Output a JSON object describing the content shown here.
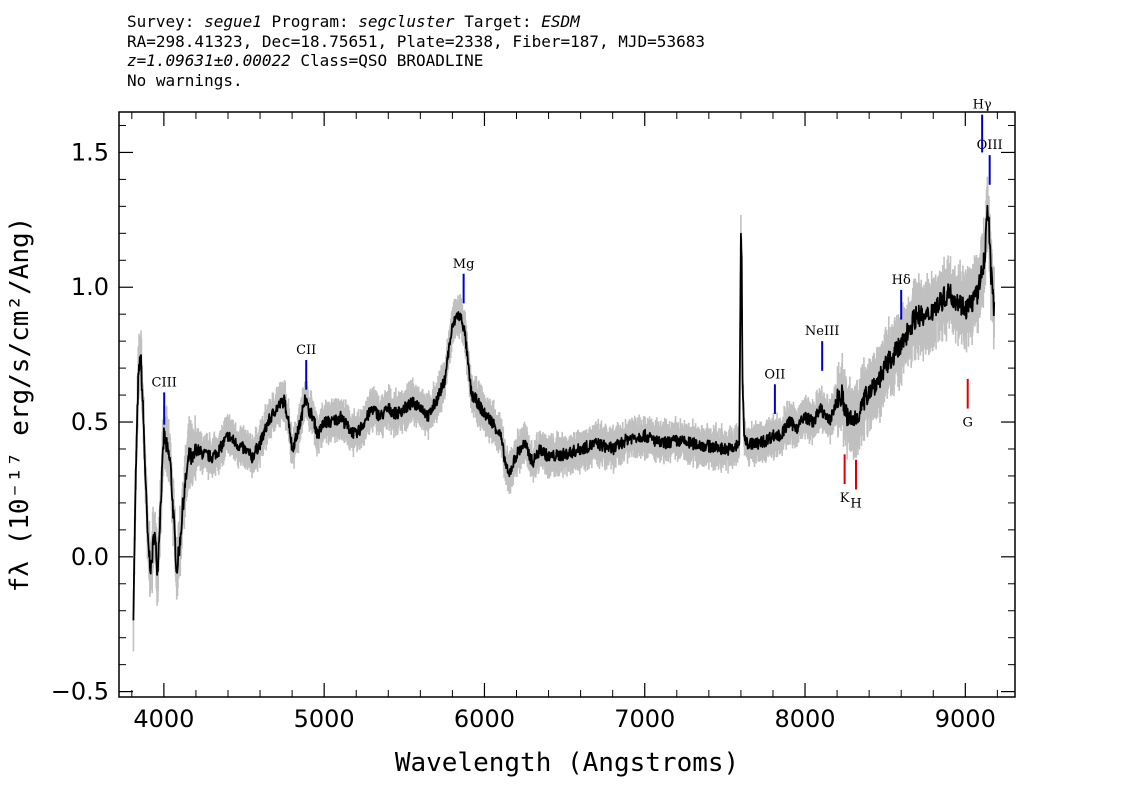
{
  "header": {
    "survey_label": "Survey:",
    "survey": "segue1",
    "program_label": "Program:",
    "program": "segcluster",
    "target_label": "Target:",
    "target": "ESDM",
    "line2": "RA=298.41323, Dec=18.75651, Plate=2338, Fiber=187, MJD=53683",
    "redshift": "z=1.09631±0.00022",
    "class": "Class=QSO BROADLINE",
    "warnings": "No warnings."
  },
  "colors": {
    "flux": "#000000",
    "error_band": "#c0c0c0",
    "emission_marker": "#0000cc",
    "absorption_marker": "#dd0000"
  },
  "chart_data": {
    "type": "line",
    "xlabel": "Wavelength (Angstroms)",
    "ylabel": "fλ (10⁻¹⁷ erg/s/cm²/Ang)",
    "xlim": [
      3720,
      9310
    ],
    "ylim": [
      -0.52,
      1.65
    ],
    "x_ticks": [
      4000,
      5000,
      6000,
      7000,
      8000,
      9000
    ],
    "y_ticks": [
      -0.5,
      0.0,
      0.5,
      1.0,
      1.5
    ],
    "y_tick_labels": [
      "−0.5",
      "0.0",
      "0.5",
      "1.0",
      "1.5"
    ],
    "series": [
      {
        "values_x": [
          3810,
          3825,
          3840,
          3855,
          3870,
          3885,
          3900,
          3920,
          3940,
          3960,
          3980,
          4000,
          4020,
          4040,
          4060,
          4080,
          4100,
          4120,
          4140,
          4160,
          4180,
          4200,
          4250,
          4300,
          4350,
          4400,
          4450,
          4500,
          4550,
          4600,
          4650,
          4700,
          4750,
          4780,
          4800,
          4830,
          4860,
          4880,
          4900,
          4930,
          4960,
          5000,
          5050,
          5100,
          5150,
          5200,
          5250,
          5300,
          5350,
          5400,
          5450,
          5500,
          5550,
          5600,
          5650,
          5700,
          5750,
          5780,
          5800,
          5830,
          5860,
          5880,
          5900,
          5920,
          5950,
          5980,
          6000,
          6050,
          6100,
          6130,
          6150,
          6200,
          6250,
          6300,
          6350,
          6400,
          6500,
          6600,
          6700,
          6800,
          6900,
          7000,
          7100,
          7200,
          7300,
          7400,
          7500,
          7550,
          7590,
          7600,
          7605,
          7610,
          7620,
          7640,
          7700,
          7750,
          7800,
          7850,
          7900,
          7950,
          8000,
          8050,
          8100,
          8150,
          8200,
          8230,
          8260,
          8300,
          8350,
          8400,
          8450,
          8500,
          8550,
          8600,
          8650,
          8700,
          8750,
          8800,
          8850,
          8900,
          8950,
          9000,
          9050,
          9080,
          9100,
          9120,
          9140,
          9150,
          9160,
          9170,
          9180
        ],
        "values_y": [
          -0.2,
          0.3,
          0.65,
          0.75,
          0.55,
          0.3,
          0.05,
          -0.05,
          0.1,
          -0.05,
          0.2,
          0.45,
          0.4,
          0.35,
          0.15,
          -0.05,
          0.05,
          0.2,
          0.3,
          0.38,
          0.35,
          0.4,
          0.38,
          0.37,
          0.4,
          0.45,
          0.42,
          0.4,
          0.37,
          0.42,
          0.5,
          0.55,
          0.58,
          0.5,
          0.4,
          0.45,
          0.52,
          0.6,
          0.55,
          0.52,
          0.45,
          0.5,
          0.5,
          0.52,
          0.48,
          0.45,
          0.5,
          0.55,
          0.52,
          0.55,
          0.53,
          0.55,
          0.57,
          0.56,
          0.52,
          0.58,
          0.65,
          0.78,
          0.85,
          0.9,
          0.88,
          0.82,
          0.7,
          0.6,
          0.58,
          0.55,
          0.53,
          0.5,
          0.45,
          0.35,
          0.3,
          0.38,
          0.42,
          0.35,
          0.4,
          0.37,
          0.38,
          0.4,
          0.42,
          0.4,
          0.44,
          0.45,
          0.42,
          0.43,
          0.42,
          0.41,
          0.4,
          0.4,
          0.42,
          1.2,
          1.1,
          0.65,
          0.45,
          0.42,
          0.42,
          0.43,
          0.45,
          0.45,
          0.5,
          0.48,
          0.52,
          0.5,
          0.55,
          0.5,
          0.58,
          0.6,
          0.52,
          0.5,
          0.55,
          0.62,
          0.65,
          0.7,
          0.75,
          0.78,
          0.85,
          0.9,
          0.88,
          0.92,
          0.95,
          0.98,
          0.95,
          0.92,
          0.95,
          0.98,
          1.05,
          1.1,
          1.3,
          1.2,
          1.05,
          0.98,
          0.92
        ]
      }
    ],
    "emission_lines": [
      {
        "name": "CIII",
        "wave": 4002,
        "y0": 0.49,
        "y1": 0.61
      },
      {
        "name": "CII",
        "wave": 4888,
        "y0": 0.62,
        "y1": 0.73
      },
      {
        "name": "Mg",
        "wave": 5870,
        "y0": 0.94,
        "y1": 1.05
      },
      {
        "name": "OII",
        "wave": 7812,
        "y0": 0.53,
        "y1": 0.64
      },
      {
        "name": "NeIII",
        "wave": 8107,
        "y0": 0.69,
        "y1": 0.8
      },
      {
        "name": "Hδ",
        "wave": 8600,
        "y0": 0.88,
        "y1": 0.99
      },
      {
        "name": "OIII",
        "wave": 9152,
        "y0": 1.38,
        "y1": 1.49
      },
      {
        "name": "Hγ",
        "wave": 9105,
        "y0": 1.5,
        "y1": 1.64
      }
    ],
    "absorption_lines": [
      {
        "name": "K",
        "wave": 8247,
        "y0": 0.27,
        "y1": 0.38
      },
      {
        "name": "H",
        "wave": 8318,
        "y0": 0.25,
        "y1": 0.36
      },
      {
        "name": "G",
        "wave": 9015,
        "y0": 0.55,
        "y1": 0.66
      }
    ]
  }
}
